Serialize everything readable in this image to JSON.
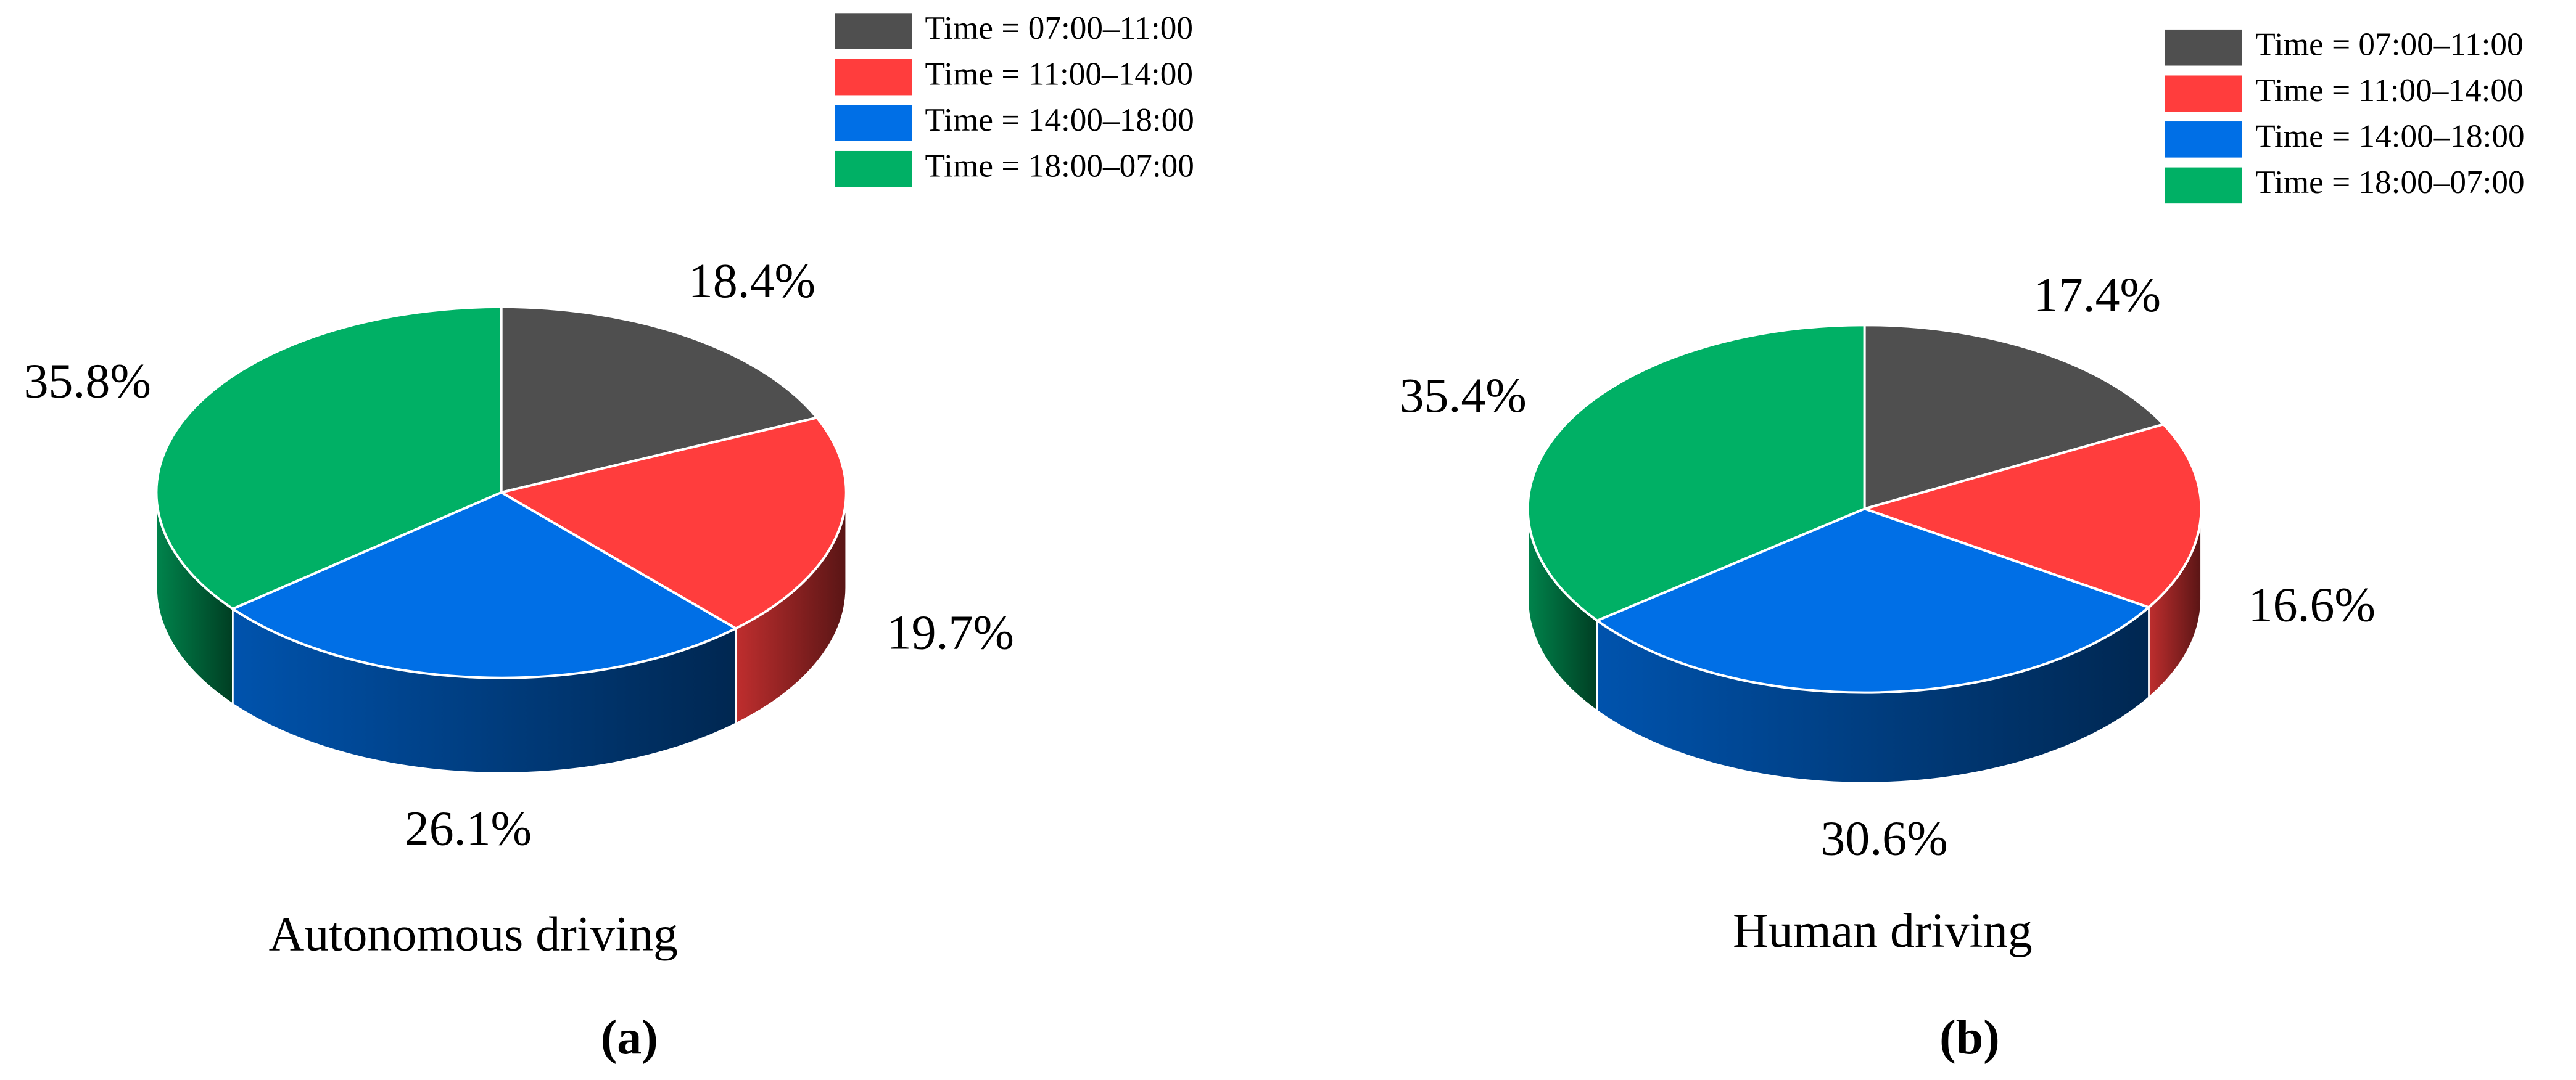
{
  "chart_data": [
    {
      "type": "pie",
      "title": "Autonomous driving",
      "caption": "(a)",
      "categories": [
        "Time = 07:00–11:00",
        "Time = 11:00–14:00",
        "Time = 14:00–18:00",
        "Time = 18:00–07:00"
      ],
      "values": [
        18.4,
        19.7,
        26.1,
        35.8
      ],
      "value_labels": [
        "18.4%",
        "19.7%",
        "26.1%",
        "35.8%"
      ],
      "colors": [
        "#4f4f4f",
        "#ff3d3d",
        "#006fe6",
        "#00b065"
      ]
    },
    {
      "type": "pie",
      "title": "Human driving",
      "caption": "(b)",
      "categories": [
        "Time = 07:00–11:00",
        "Time = 11:00–14:00",
        "Time = 14:00–18:00",
        "Time = 18:00–07:00"
      ],
      "values": [
        17.4,
        16.6,
        30.6,
        35.4
      ],
      "value_labels": [
        "17.4%",
        "16.6%",
        "30.6%",
        "35.4%"
      ],
      "colors": [
        "#4f4f4f",
        "#ff3d3d",
        "#006fe6",
        "#00b065"
      ]
    }
  ]
}
